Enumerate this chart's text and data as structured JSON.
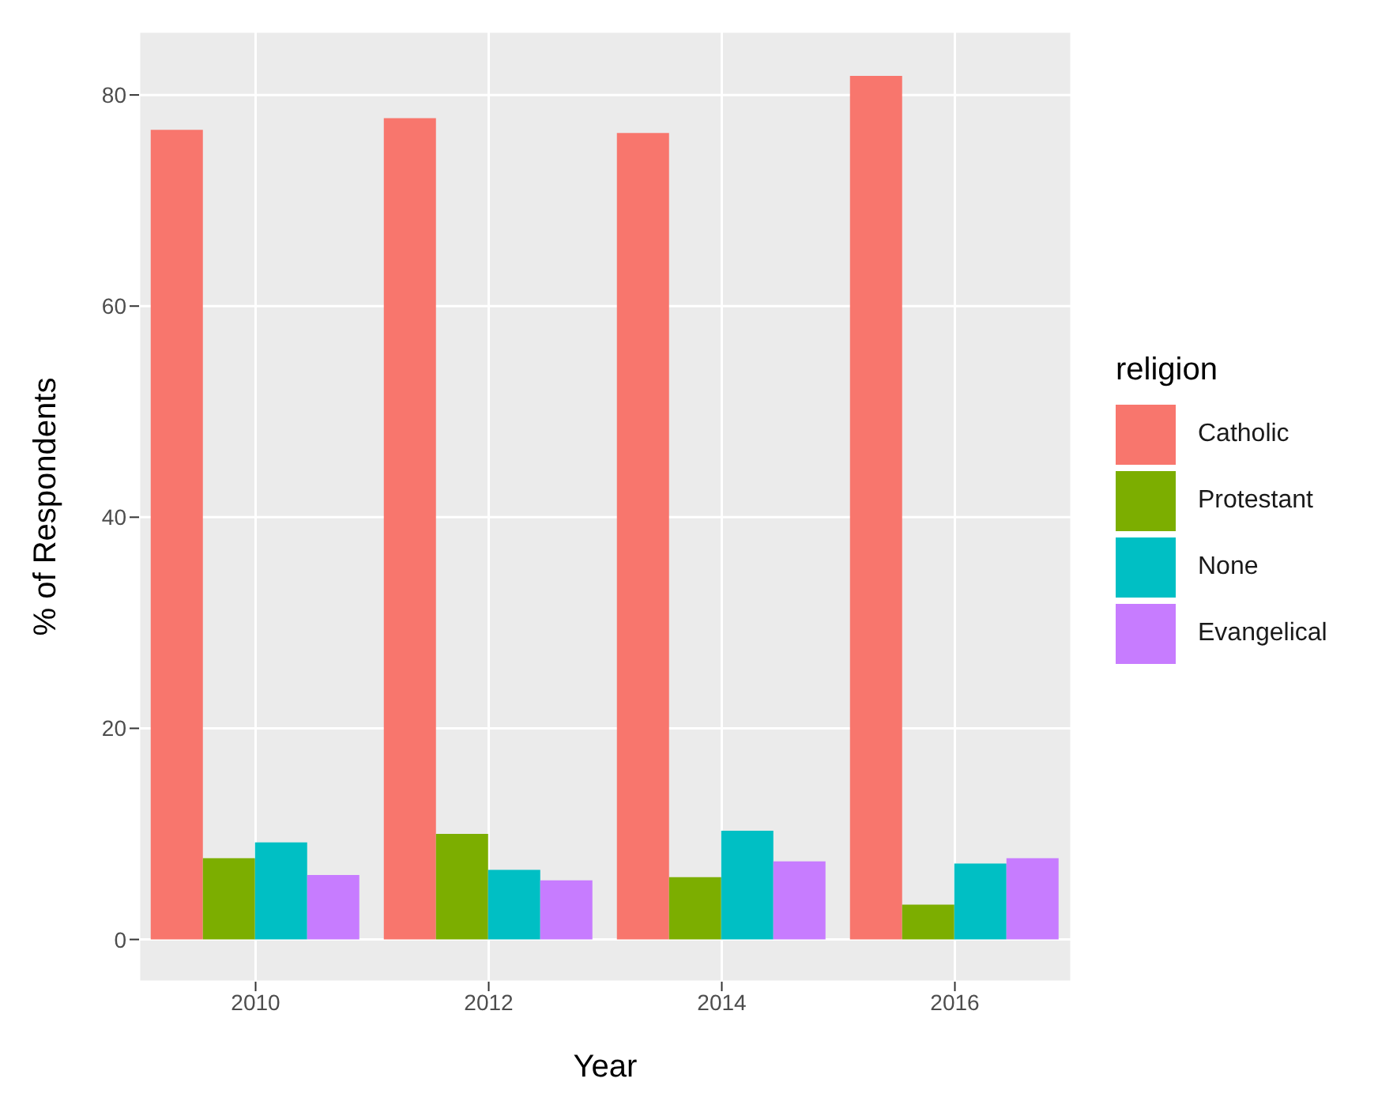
{
  "chart_data": {
    "type": "bar",
    "xlabel": "Year",
    "ylabel": "% of Respondents",
    "legend_title": "religion",
    "categories": [
      "2010",
      "2012",
      "2014",
      "2016"
    ],
    "series": [
      {
        "name": "Catholic",
        "color": "#f8766d",
        "values": [
          76.7,
          77.8,
          76.4,
          81.8
        ]
      },
      {
        "name": "Protestant",
        "color": "#7cae00",
        "values": [
          7.7,
          10.0,
          5.9,
          3.3
        ]
      },
      {
        "name": "None",
        "color": "#00bfc4",
        "values": [
          9.2,
          6.6,
          10.3,
          7.2
        ]
      },
      {
        "name": "Evangelical",
        "color": "#c77cff",
        "values": [
          6.1,
          5.6,
          7.4,
          7.7
        ]
      }
    ],
    "ylim": [
      -4,
      86
    ],
    "yticks": [
      0,
      20,
      40,
      60,
      80
    ],
    "grid": true,
    "legend": "right"
  }
}
